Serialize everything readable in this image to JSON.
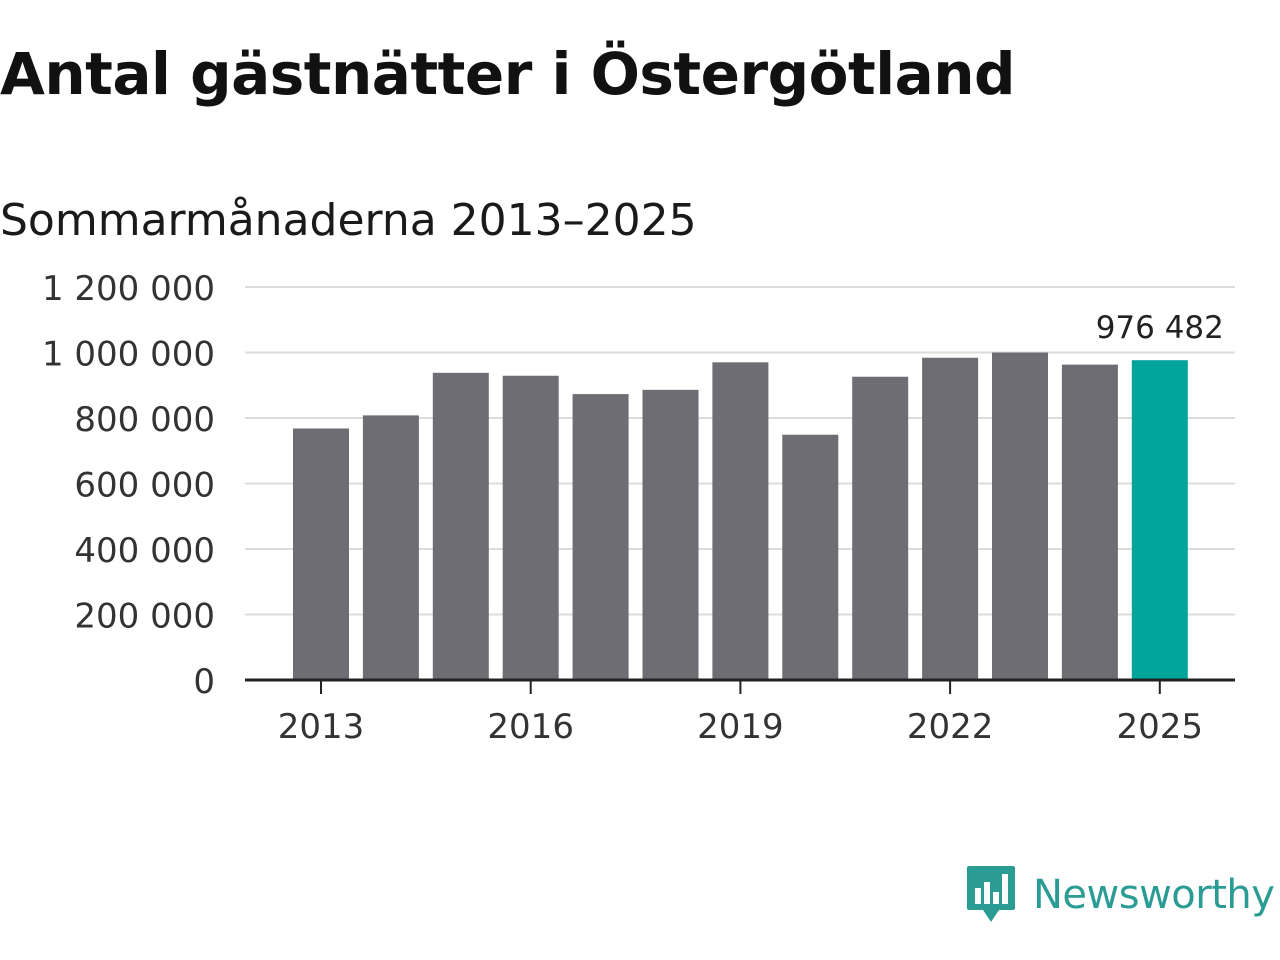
{
  "title": "Antal gästnätter i Östergötland",
  "subtitle": "Sommarmånaderna 2013–2025",
  "brand": {
    "name": "Newsworthy",
    "icon": "newsworthy-logo-icon",
    "color": "#2b9c94"
  },
  "chart_data": {
    "type": "bar",
    "categories": [
      "2013",
      "2014",
      "2015",
      "2016",
      "2017",
      "2018",
      "2019",
      "2020",
      "2021",
      "2022",
      "2023",
      "2024",
      "2025"
    ],
    "values": [
      768000,
      808000,
      938000,
      929000,
      873000,
      886000,
      970000,
      749000,
      926000,
      984000,
      1000000,
      963000,
      976482
    ],
    "x_tick_labels": [
      "2013",
      "2016",
      "2019",
      "2022",
      "2025"
    ],
    "y_ticks": [
      0,
      200000,
      400000,
      600000,
      800000,
      1000000,
      1200000
    ],
    "y_tick_labels": [
      "0",
      "200 000",
      "400 000",
      "600 000",
      "800 000",
      "1 000 000",
      "1 200 000"
    ],
    "ylim": [
      0,
      1200000
    ],
    "highlight_index": 12,
    "highlight_label": "976 482",
    "bar_color": "#6e6d73",
    "highlight_color": "#00a49a",
    "grid": true,
    "title": "Antal gästnätter i Östergötland",
    "subtitle": "Sommarmånaderna 2013–2025",
    "xlabel": "",
    "ylabel": ""
  }
}
